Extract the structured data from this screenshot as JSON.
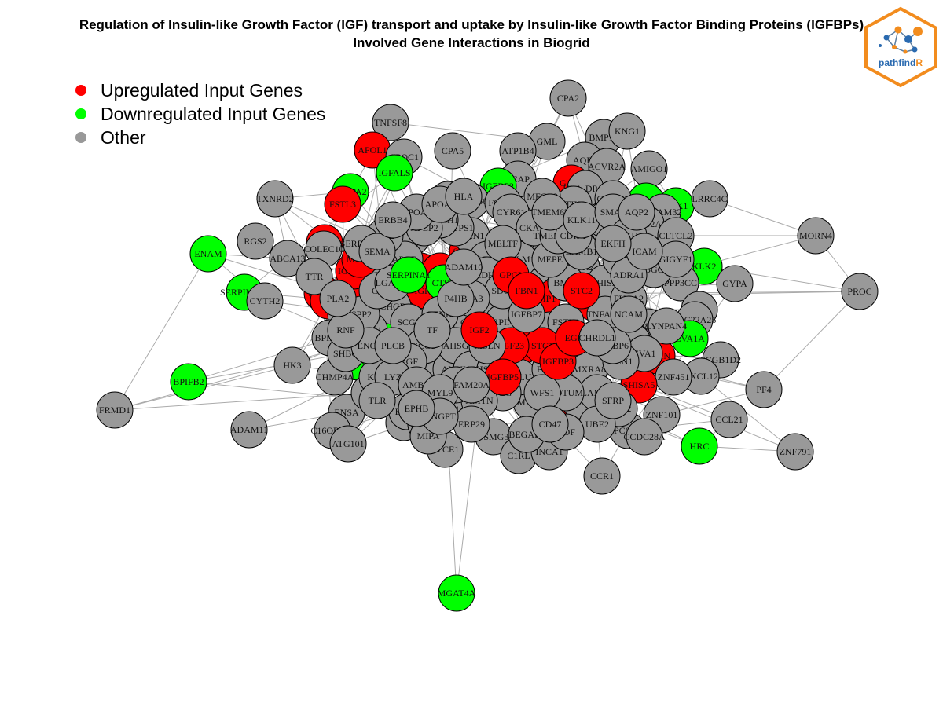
{
  "title": {
    "line1": "Regulation of Insulin-like Growth Factor (IGF) transport and uptake by Insulin-like Growth Factor Binding Proteins (IGFBPs)",
    "line2": "Involved Gene Interactions in Biogrid"
  },
  "legend": [
    {
      "label": "Upregulated Input Genes",
      "color": "#ff0000"
    },
    {
      "label": "Downregulated Input Genes",
      "color": "#00ff00"
    },
    {
      "label": "Other",
      "color": "#999999"
    }
  ],
  "logo": {
    "text_main": "pathfind",
    "text_accent": "R",
    "border_color": "#f28c1e",
    "text_color": "#2a6ab0"
  },
  "colors": {
    "up": "#ff0000",
    "down": "#00ff00",
    "other": "#999999",
    "edge": "#aaaaaa"
  },
  "nodes": [
    {
      "id": "CPA2",
      "type": "other"
    },
    {
      "id": "TNFSF8",
      "type": "other"
    },
    {
      "id": "GML",
      "type": "other"
    },
    {
      "id": "BMP10",
      "type": "other"
    },
    {
      "id": "KNG1",
      "type": "other"
    },
    {
      "id": "APOL1",
      "type": "up"
    },
    {
      "id": "APOC1",
      "type": "other"
    },
    {
      "id": "CPA5",
      "type": "other"
    },
    {
      "id": "ATP1B4",
      "type": "other"
    },
    {
      "id": "IGFALS",
      "type": "down"
    },
    {
      "id": "AQP9",
      "type": "other"
    },
    {
      "id": "ACVR2A",
      "type": "other"
    },
    {
      "id": "AMIGO1",
      "type": "other"
    },
    {
      "id": "SCAP",
      "type": "other"
    },
    {
      "id": "GAS6",
      "type": "up"
    },
    {
      "id": "HLA-DPA1",
      "type": "other"
    },
    {
      "id": "IGFBP2",
      "type": "down"
    },
    {
      "id": "PAPPA2",
      "type": "down"
    },
    {
      "id": "TXNRD2",
      "type": "other"
    },
    {
      "id": "FSTL3",
      "type": "up"
    },
    {
      "id": "APOA1",
      "type": "down"
    },
    {
      "id": "KLK1",
      "type": "down"
    },
    {
      "id": "LRRC4C",
      "type": "other"
    },
    {
      "id": "ADAM32",
      "type": "other"
    },
    {
      "id": "MORN4",
      "type": "other"
    },
    {
      "id": "RGS2",
      "type": "other"
    },
    {
      "id": "F5",
      "type": "up"
    },
    {
      "id": "ENAM",
      "type": "down"
    },
    {
      "id": "ABCA13",
      "type": "other"
    },
    {
      "id": "COLEC10",
      "type": "other"
    },
    {
      "id": "ETAA1",
      "type": "other"
    },
    {
      "id": "KLK2",
      "type": "down"
    },
    {
      "id": "GYPA",
      "type": "other"
    },
    {
      "id": "PROC",
      "type": "other"
    },
    {
      "id": "SERPINA10",
      "type": "down"
    },
    {
      "id": "CYTH2",
      "type": "other"
    },
    {
      "id": "TNC",
      "type": "up"
    },
    {
      "id": "PAPPA",
      "type": "up"
    },
    {
      "id": "F2",
      "type": "up"
    },
    {
      "id": "PPP3CC",
      "type": "other"
    },
    {
      "id": "PDF",
      "type": "other"
    },
    {
      "id": "SLC22A25",
      "type": "other"
    },
    {
      "id": "EVA1A",
      "type": "down"
    },
    {
      "id": "VCAN",
      "type": "up"
    },
    {
      "id": "SCGB1D2",
      "type": "other"
    },
    {
      "id": "CXCL12",
      "type": "other"
    },
    {
      "id": "ZNF451",
      "type": "other"
    },
    {
      "id": "PF4",
      "type": "other"
    },
    {
      "id": "BPIFB2",
      "type": "down"
    },
    {
      "id": "HK3",
      "type": "other"
    },
    {
      "id": "KLK3",
      "type": "down"
    },
    {
      "id": "CHMP4A",
      "type": "other"
    },
    {
      "id": "FRMD1",
      "type": "other"
    },
    {
      "id": "ADAM11",
      "type": "other"
    },
    {
      "id": "ENSA",
      "type": "other"
    },
    {
      "id": "C16ORF70",
      "type": "other"
    },
    {
      "id": "ATG101",
      "type": "other"
    },
    {
      "id": "GDA",
      "type": "other"
    },
    {
      "id": "SYCE1",
      "type": "other"
    },
    {
      "id": "PSMG3",
      "type": "other"
    },
    {
      "id": "C1RL",
      "type": "other"
    },
    {
      "id": "INCA1",
      "type": "other"
    },
    {
      "id": "MATN3",
      "type": "up"
    },
    {
      "id": "CCR1",
      "type": "other"
    },
    {
      "id": "ZNF101",
      "type": "other"
    },
    {
      "id": "HRC",
      "type": "down"
    },
    {
      "id": "CCL21",
      "type": "other"
    },
    {
      "id": "ZNF791",
      "type": "other"
    },
    {
      "id": "MGAT4A",
      "type": "down"
    },
    {
      "id": "CPD",
      "type": "other"
    },
    {
      "id": "SHISA5",
      "type": "up"
    },
    {
      "id": "TRIM",
      "type": "other"
    },
    {
      "id": "PCSK5",
      "type": "other"
    },
    {
      "id": "DESI",
      "type": "other"
    },
    {
      "id": "CCDC28A",
      "type": "other"
    },
    {
      "id": "TMP2",
      "type": "other"
    },
    {
      "id": "FBXO2",
      "type": "other"
    },
    {
      "id": "CP",
      "type": "other"
    },
    {
      "id": "LYNPAN4",
      "type": "other"
    },
    {
      "id": "CNPY3",
      "type": "other"
    },
    {
      "id": "RABGGTB",
      "type": "other"
    },
    {
      "id": "GPR152",
      "type": "other"
    },
    {
      "id": "SCGB2A2",
      "type": "other"
    },
    {
      "id": "DIAB",
      "type": "other"
    },
    {
      "id": "PLAT",
      "type": "other"
    },
    {
      "id": "AOB",
      "type": "other"
    },
    {
      "id": "IGFBP4",
      "type": "up"
    },
    {
      "id": "ADHFE1",
      "type": "other"
    },
    {
      "id": "TRIM66",
      "type": "other"
    },
    {
      "id": "FCGR1",
      "type": "other"
    },
    {
      "id": "UBE2R2",
      "type": "other"
    },
    {
      "id": "CEP14",
      "type": "other"
    },
    {
      "id": "BRK1",
      "type": "other"
    },
    {
      "id": "MYOC",
      "type": "other"
    },
    {
      "id": "BEGAIN",
      "type": "other"
    },
    {
      "id": "SLC",
      "type": "other"
    },
    {
      "id": "ANT",
      "type": "other"
    },
    {
      "id": "CHMP3",
      "type": "other"
    },
    {
      "id": "MIPA",
      "type": "other"
    },
    {
      "id": "C16",
      "type": "other"
    },
    {
      "id": "ALB",
      "type": "other"
    },
    {
      "id": "TTR",
      "type": "other"
    },
    {
      "id": "MMP1",
      "type": "up"
    },
    {
      "id": "FN1",
      "type": "up"
    },
    {
      "id": "SPP1",
      "type": "up"
    },
    {
      "id": "IGF1",
      "type": "up"
    },
    {
      "id": "APOB",
      "type": "other"
    },
    {
      "id": "SPARC",
      "type": "up"
    },
    {
      "id": "TIMP1",
      "type": "up"
    },
    {
      "id": "CTSG",
      "type": "down"
    },
    {
      "id": "LTBP1",
      "type": "up"
    },
    {
      "id": "FGA",
      "type": "down"
    },
    {
      "id": "APOE",
      "type": "up"
    },
    {
      "id": "CST3",
      "type": "other"
    },
    {
      "id": "HRG",
      "type": "other"
    },
    {
      "id": "AHSG",
      "type": "other"
    },
    {
      "id": "SERPINC1",
      "type": "other"
    },
    {
      "id": "VWA1",
      "type": "other"
    },
    {
      "id": "LAMB2",
      "type": "other"
    },
    {
      "id": "QSOX1",
      "type": "other"
    },
    {
      "id": "MEN1",
      "type": "other"
    },
    {
      "id": "TGOLN2",
      "type": "other"
    },
    {
      "id": "FAM20C",
      "type": "other"
    },
    {
      "id": "CDH2",
      "type": "other"
    },
    {
      "id": "APP",
      "type": "other"
    },
    {
      "id": "BMP4",
      "type": "other"
    },
    {
      "id": "SHISA",
      "type": "other"
    },
    {
      "id": "CHGB",
      "type": "other"
    },
    {
      "id": "SCG2",
      "type": "other"
    },
    {
      "id": "SCG3",
      "type": "other"
    },
    {
      "id": "PENK",
      "type": "other"
    },
    {
      "id": "NUCB1",
      "type": "other"
    },
    {
      "id": "HSP90B1",
      "type": "other"
    },
    {
      "id": "CALU",
      "type": "other"
    },
    {
      "id": "PDIA6",
      "type": "other"
    },
    {
      "id": "LGALS1",
      "type": "other"
    },
    {
      "id": "MXRA8",
      "type": "other"
    },
    {
      "id": "TNFAIP6",
      "type": "other"
    },
    {
      "id": "FUCA2",
      "type": "other"
    },
    {
      "id": "CSF1",
      "type": "other"
    },
    {
      "id": "KTN1",
      "type": "other"
    },
    {
      "id": "ITIH2",
      "type": "other"
    },
    {
      "id": "MFGE8",
      "type": "other"
    },
    {
      "id": "CYR61",
      "type": "other"
    },
    {
      "id": "EVA1",
      "type": "other"
    },
    {
      "id": "RCN1",
      "type": "other"
    },
    {
      "id": "LAMC1",
      "type": "other"
    },
    {
      "id": "NOTUM",
      "type": "other"
    },
    {
      "id": "WFS1",
      "type": "other"
    },
    {
      "id": "PLG",
      "type": "other"
    },
    {
      "id": "AMTN",
      "type": "other"
    },
    {
      "id": "ANO8",
      "type": "other"
    },
    {
      "id": "PRSS23",
      "type": "other"
    },
    {
      "id": "KIF1",
      "type": "other"
    },
    {
      "id": "DMP1",
      "type": "other"
    },
    {
      "id": "SPP2",
      "type": "other"
    },
    {
      "id": "C3",
      "type": "other"
    },
    {
      "id": "LGALS3",
      "type": "other"
    },
    {
      "id": "CDH1",
      "type": "other"
    },
    {
      "id": "SDC2",
      "type": "other"
    },
    {
      "id": "MBTPS1",
      "type": "other"
    },
    {
      "id": "NOTCH1",
      "type": "other"
    },
    {
      "id": "APLP2",
      "type": "other"
    },
    {
      "id": "PROS1",
      "type": "other"
    },
    {
      "id": "FSTL1",
      "type": "other"
    },
    {
      "id": "STC2",
      "type": "up"
    },
    {
      "id": "STC1",
      "type": "up"
    },
    {
      "id": "FGF23",
      "type": "up"
    },
    {
      "id": "MSLN",
      "type": "other"
    },
    {
      "id": "MIA3",
      "type": "other"
    },
    {
      "id": "P4HB",
      "type": "other"
    },
    {
      "id": "VGF",
      "type": "other"
    },
    {
      "id": "TF",
      "type": "other"
    },
    {
      "id": "IGFBP3",
      "type": "up"
    },
    {
      "id": "IGFBP5",
      "type": "up"
    },
    {
      "id": "IGFBP6",
      "type": "other"
    },
    {
      "id": "IGFBP7",
      "type": "other"
    },
    {
      "id": "IGF2",
      "type": "up"
    },
    {
      "id": "ADAM10",
      "type": "other"
    },
    {
      "id": "SERPINA1",
      "type": "down"
    },
    {
      "id": "GOLM1",
      "type": "other"
    },
    {
      "id": "CKAP4",
      "type": "other"
    },
    {
      "id": "MELTF",
      "type": "other"
    },
    {
      "id": "MEPE",
      "type": "other"
    },
    {
      "id": "LAMB1",
      "type": "other"
    },
    {
      "id": "EGF",
      "type": "up"
    },
    {
      "id": "CHRDL1",
      "type": "other"
    },
    {
      "id": "TMEM132A",
      "type": "other"
    },
    {
      "id": "CDIPT",
      "type": "other"
    },
    {
      "id": "GPC3",
      "type": "up"
    },
    {
      "id": "FBN1",
      "type": "up"
    },
    {
      "id": "BPIFA2",
      "type": "other"
    },
    {
      "id": "SHBG",
      "type": "other"
    },
    {
      "id": "ENO1",
      "type": "other"
    },
    {
      "id": "LYZ",
      "type": "other"
    },
    {
      "id": "AMBN",
      "type": "other"
    },
    {
      "id": "MYL9",
      "type": "other"
    },
    {
      "id": "FAM20A",
      "type": "other"
    },
    {
      "id": "ACE",
      "type": "other"
    },
    {
      "id": "SERPINE2",
      "type": "other"
    },
    {
      "id": "APOA2",
      "type": "other"
    },
    {
      "id": "APOA5",
      "type": "other"
    },
    {
      "id": "TMEM67",
      "type": "other"
    },
    {
      "id": "KLK11",
      "type": "other"
    },
    {
      "id": "SMAP",
      "type": "other"
    },
    {
      "id": "PLEKHG4",
      "type": "other"
    },
    {
      "id": "HLA",
      "type": "other"
    },
    {
      "id": "AQP2",
      "type": "other"
    },
    {
      "id": "CLTCL2",
      "type": "other"
    },
    {
      "id": "GIGYF1",
      "type": "other"
    },
    {
      "id": "ADRA1",
      "type": "other"
    },
    {
      "id": "ICAM",
      "type": "other"
    },
    {
      "id": "EKFH",
      "type": "other"
    },
    {
      "id": "NCAM",
      "type": "other"
    },
    {
      "id": "UBE2",
      "type": "other"
    },
    {
      "id": "GDF",
      "type": "other"
    },
    {
      "id": "SFRP",
      "type": "other"
    },
    {
      "id": "CD47",
      "type": "other"
    },
    {
      "id": "ERP29",
      "type": "other"
    },
    {
      "id": "ANGPT",
      "type": "other"
    },
    {
      "id": "PLCB",
      "type": "other"
    },
    {
      "id": "SEMA",
      "type": "other"
    },
    {
      "id": "ERBB4",
      "type": "other"
    },
    {
      "id": "RNF",
      "type": "other"
    },
    {
      "id": "TLR",
      "type": "other"
    },
    {
      "id": "PLA2",
      "type": "other"
    },
    {
      "id": "EPHB",
      "type": "other"
    }
  ]
}
